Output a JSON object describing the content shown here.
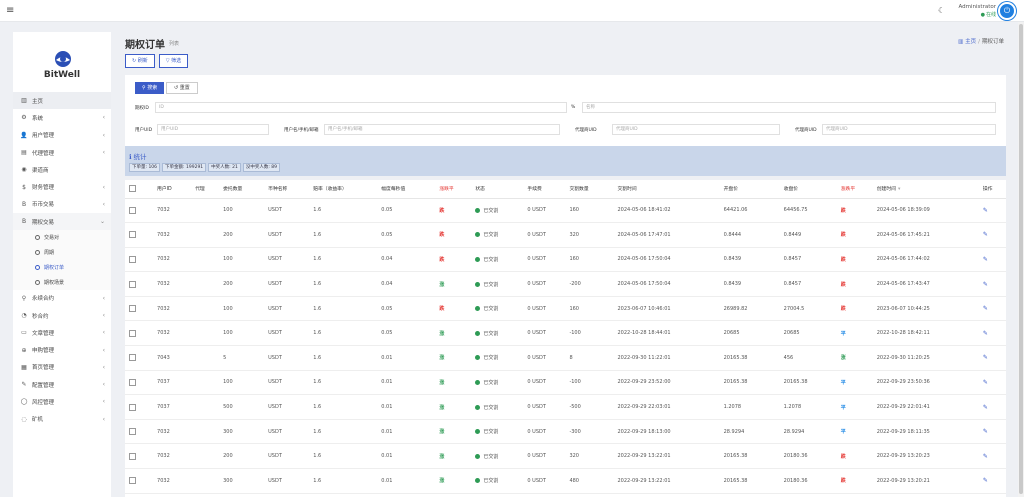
{
  "topbar": {
    "admin_name": "Administrator",
    "admin_status": "在线"
  },
  "sidebar": {
    "brand": "BitWell",
    "items": [
      {
        "label": "主页",
        "icon": "dashboard-icon",
        "glyph": "▥",
        "active": true,
        "chevron": false
      },
      {
        "label": "系统",
        "icon": "gear-icon",
        "glyph": "⚙",
        "chevron": true
      },
      {
        "label": "用户管理",
        "icon": "user-icon",
        "glyph": "👤",
        "chevron": true
      },
      {
        "label": "代理管理",
        "icon": "id-card-icon",
        "glyph": "▤",
        "chevron": true
      },
      {
        "label": "渠道商",
        "icon": "user-circle-icon",
        "glyph": "◉",
        "chevron": false
      },
      {
        "label": "财务管理",
        "icon": "dollar-icon",
        "glyph": "$",
        "chevron": true
      },
      {
        "label": "币币交易",
        "icon": "bitcoin-icon",
        "glyph": "B",
        "chevron": true
      },
      {
        "label": "期权交易",
        "icon": "bitcoin-icon",
        "glyph": "B",
        "chevron": true,
        "open": true,
        "children": [
          {
            "label": "交易对",
            "selected": false
          },
          {
            "label": "周期",
            "selected": false
          },
          {
            "label": "期权订单",
            "selected": true
          },
          {
            "label": "期权场景",
            "selected": false
          }
        ]
      },
      {
        "label": "永续合约",
        "icon": "link-icon",
        "glyph": "⚲",
        "chevron": true
      },
      {
        "label": "秒合约",
        "icon": "timer-icon",
        "glyph": "◔",
        "chevron": true
      },
      {
        "label": "文章管理",
        "icon": "article-icon",
        "glyph": "▭",
        "chevron": true
      },
      {
        "label": "申购管理",
        "icon": "globe-icon",
        "glyph": "⊕",
        "chevron": true
      },
      {
        "label": "首页管理",
        "icon": "home-grid-icon",
        "glyph": "▦",
        "chevron": true
      },
      {
        "label": "配置管理",
        "icon": "wrench-icon",
        "glyph": "✎",
        "chevron": true
      },
      {
        "label": "风控管理",
        "icon": "shield-icon",
        "glyph": "◯",
        "chevron": true
      },
      {
        "label": "矿机",
        "icon": "mining-icon",
        "glyph": "◌",
        "chevron": true
      }
    ]
  },
  "page": {
    "title": "期权订单",
    "subtitle": "列表",
    "breadcrumb_home": "主页",
    "breadcrumb_current": "期权订单",
    "refresh_label": "刷新",
    "filter_label": "筛选"
  },
  "filters": {
    "search_label": "搜索",
    "reset_label": "重置",
    "f1_label": "期权ID",
    "f1_placeholder": "ID",
    "f2_label": "%",
    "f2_placeholder": "名称",
    "f3_label": "用户UID",
    "f3_placeholder": "用户UID",
    "f4_label": "用户名/手机/邮箱",
    "f4_placeholder": "用户名/手机/邮箱",
    "f5_label": "代理商UID",
    "f5_placeholder": "代理商UID",
    "f6_label": "代理商UID",
    "f6_placeholder": "代理商UID"
  },
  "stats": {
    "heading": "统计",
    "chips": [
      "下单量: 106",
      "下单金额: 199291",
      "中奖人数: 21",
      "没中奖人数: 89"
    ]
  },
  "table": {
    "headers": [
      "",
      "用户ID",
      "代理",
      "委托数量",
      "币种名称",
      "赔率（收益率）",
      "幅度每秒值",
      "涨跌平",
      "状态",
      "手续费",
      "交割数量",
      "交割时间",
      "开盘价",
      "收盘价",
      "涨跌平",
      "创建时间",
      "操作"
    ],
    "rows": [
      [
        "7032",
        "",
        "100",
        "USDT",
        "1.6",
        "0.05",
        "跌",
        "已交割",
        "0 USDT",
        "160",
        "2024-05-06 18:41:02",
        "64421.06",
        "64456.75",
        "跌",
        "2024-05-06 18:39:09"
      ],
      [
        "7032",
        "",
        "200",
        "USDT",
        "1.6",
        "0.05",
        "跌",
        "已交割",
        "0 USDT",
        "320",
        "2024-05-06 17:47:01",
        "0.8444",
        "0.8449",
        "跌",
        "2024-05-06 17:45:21"
      ],
      [
        "7032",
        "",
        "100",
        "USDT",
        "1.6",
        "0.04",
        "跌",
        "已交割",
        "0 USDT",
        "160",
        "2024-05-06 17:50:04",
        "0.8439",
        "0.8457",
        "跌",
        "2024-05-06 17:44:02"
      ],
      [
        "7032",
        "",
        "200",
        "USDT",
        "1.6",
        "0.04",
        "涨",
        "已交割",
        "0 USDT",
        "-200",
        "2024-05-06 17:50:04",
        "0.8439",
        "0.8457",
        "跌",
        "2024-05-06 17:43:47"
      ],
      [
        "7032",
        "",
        "100",
        "USDT",
        "1.6",
        "0.05",
        "跌",
        "已交割",
        "0 USDT",
        "160",
        "2023-06-07 10:46:01",
        "26989.82",
        "27004.5",
        "跌",
        "2023-06-07 10:44:25"
      ],
      [
        "7032",
        "",
        "100",
        "USDT",
        "1.6",
        "0.05",
        "涨",
        "已交割",
        "0 USDT",
        "-100",
        "2022-10-28 18:44:01",
        "20685",
        "20685",
        "平",
        "2022-10-28 18:42:11"
      ],
      [
        "7043",
        "",
        "5",
        "USDT",
        "1.6",
        "0.01",
        "涨",
        "已交割",
        "0 USDT",
        "8",
        "2022-09-30 11:22:01",
        "20165.38",
        "456",
        "涨",
        "2022-09-30 11:20:25"
      ],
      [
        "7037",
        "",
        "100",
        "USDT",
        "1.6",
        "0.01",
        "涨",
        "已交割",
        "0 USDT",
        "-100",
        "2022-09-29 23:52:00",
        "20165.38",
        "20165.38",
        "平",
        "2022-09-29 23:50:36"
      ],
      [
        "7037",
        "",
        "500",
        "USDT",
        "1.6",
        "0.01",
        "涨",
        "已交割",
        "0 USDT",
        "-500",
        "2022-09-29 22:03:01",
        "1.2078",
        "1.2078",
        "平",
        "2022-09-29 22:01:41"
      ],
      [
        "7032",
        "",
        "300",
        "USDT",
        "1.6",
        "0.01",
        "涨",
        "已交割",
        "0 USDT",
        "-300",
        "2022-09-29 18:13:00",
        "28.9294",
        "28.9294",
        "平",
        "2022-09-29 18:11:35"
      ],
      [
        "7032",
        "",
        "200",
        "USDT",
        "1.6",
        "0.01",
        "涨",
        "已交割",
        "0 USDT",
        "320",
        "2022-09-29 13:22:01",
        "20165.38",
        "20180.36",
        "跌",
        "2022-09-29 13:20:23"
      ],
      [
        "7032",
        "",
        "300",
        "USDT",
        "1.6",
        "0.01",
        "涨",
        "已交割",
        "0 USDT",
        "480",
        "2022-09-29 13:22:01",
        "20165.38",
        "20180.36",
        "跌",
        "2022-09-29 13:20:21"
      ]
    ]
  },
  "colors": {
    "accent": "#3b5cc8",
    "rise": "#2e9b55",
    "fall": "#e53935",
    "flat": "#1e88e5",
    "status_done": "#2e9b55"
  }
}
